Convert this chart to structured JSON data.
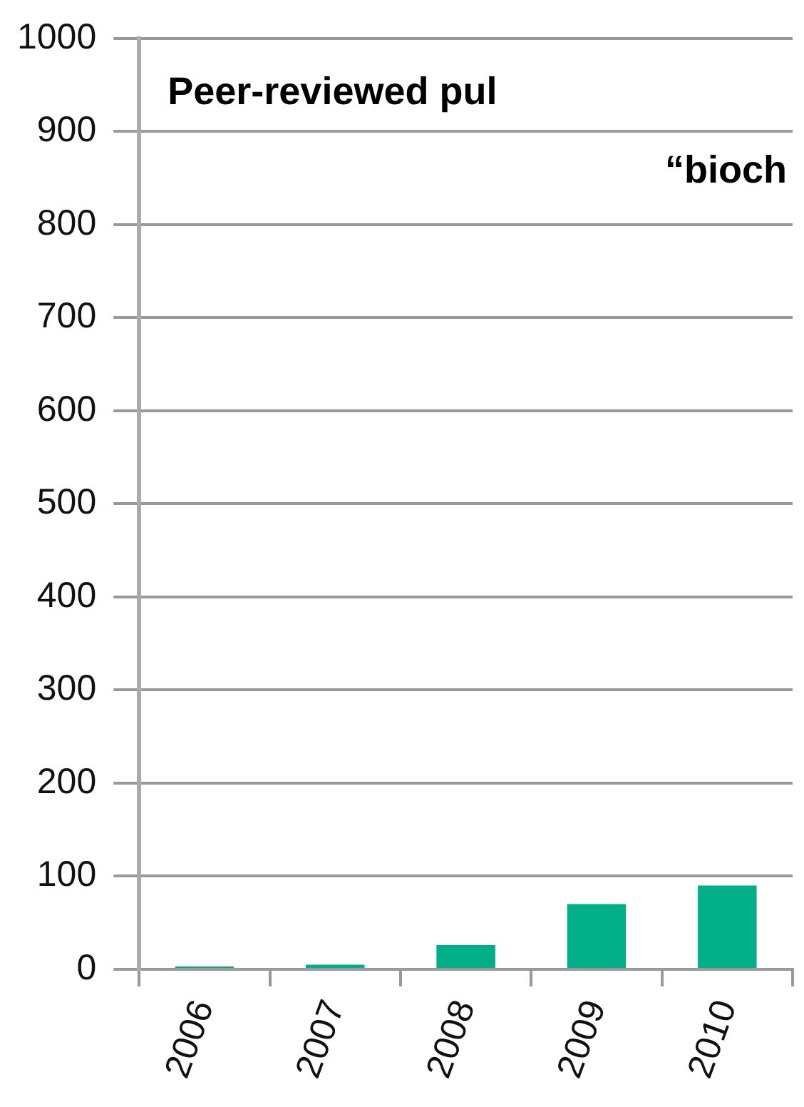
{
  "chart_data": {
    "type": "bar",
    "title": "Peer-reviewed pul",
    "subtitle": "“bioch",
    "categories": [
      "2006",
      "2007",
      "2008",
      "2009",
      "2010"
    ],
    "values": [
      3,
      5,
      26,
      70,
      90
    ],
    "color": "#00ae87",
    "ylim": [
      0,
      1000
    ],
    "yticks": [
      0,
      100,
      200,
      300,
      400,
      500,
      600,
      700,
      800,
      900,
      1000
    ],
    "grid": "y"
  }
}
